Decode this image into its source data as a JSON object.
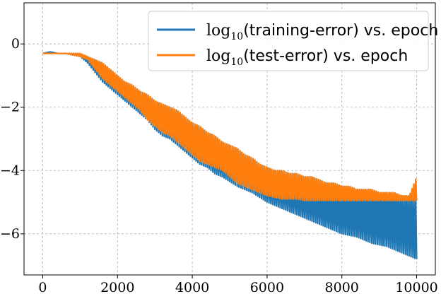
{
  "chart_data": {
    "type": "line",
    "title": "",
    "xlabel": "",
    "ylabel": "",
    "xlim": [
      -500,
      10500
    ],
    "ylim": [
      -7.3,
      1.3
    ],
    "grid": true,
    "legend_placement": "top-right",
    "x_ticks": [
      {
        "value": 0,
        "label": "0"
      },
      {
        "value": 2000,
        "label": "2000"
      },
      {
        "value": 4000,
        "label": "4000"
      },
      {
        "value": 6000,
        "label": "6000"
      },
      {
        "value": 8000,
        "label": "8000"
      },
      {
        "value": 10000,
        "label": "10000"
      }
    ],
    "y_ticks": [
      {
        "value": 0,
        "label": "0"
      },
      {
        "value": -2,
        "label": "−2"
      },
      {
        "value": -4,
        "label": "−4"
      },
      {
        "value": -6,
        "label": "−6"
      }
    ],
    "series": [
      {
        "name": "log10(training-error) vs. epoch",
        "legend_math": "log",
        "legend_sub": "10",
        "legend_rest": "(training-error) vs. epoch",
        "color": "#1f77b4",
        "x": [
          0,
          200,
          400,
          600,
          800,
          1000,
          1200,
          1400,
          1600,
          1800,
          2000,
          2200,
          2400,
          2600,
          2800,
          3000,
          3200,
          3400,
          3600,
          3800,
          4000,
          4200,
          4400,
          4600,
          4800,
          5000,
          5200,
          5400,
          5600,
          5800,
          6000,
          6200,
          6400,
          6600,
          6800,
          7000,
          7200,
          7400,
          7600,
          7800,
          8000,
          8200,
          8400,
          8600,
          8800,
          9000,
          9200,
          9400,
          9600,
          9800,
          10000
        ],
        "y": [
          -0.3,
          -0.25,
          -0.3,
          -0.3,
          -0.35,
          -0.4,
          -0.6,
          -0.9,
          -1.2,
          -1.4,
          -1.6,
          -1.8,
          -2.0,
          -2.2,
          -2.4,
          -2.7,
          -2.9,
          -3.0,
          -3.2,
          -3.4,
          -3.6,
          -3.8,
          -3.9,
          -4.1,
          -4.2,
          -4.35,
          -4.5,
          -4.6,
          -4.7,
          -4.85,
          -5.0,
          -5.1,
          -5.2,
          -5.3,
          -5.4,
          -5.5,
          -5.6,
          -5.7,
          -5.8,
          -5.9,
          -6.0,
          -6.05,
          -6.1,
          -6.2,
          -6.3,
          -6.35,
          -6.4,
          -6.5,
          -6.6,
          -6.7,
          -6.8
        ],
        "spikes_to": [
          -0.3,
          -0.25,
          -0.3,
          -0.3,
          -0.3,
          -0.3,
          -0.4,
          -0.5,
          -0.6,
          -0.8,
          -1.0,
          -1.2,
          -1.3,
          -1.5,
          -1.6,
          -1.8,
          -1.9,
          -2.0,
          -2.1,
          -2.3,
          -2.5,
          -2.6,
          -2.8,
          -2.9,
          -3.1,
          -3.2,
          -3.3,
          -3.5,
          -3.6,
          -3.8,
          -3.9,
          -4.0,
          -4.0,
          -4.1,
          -4.1,
          -4.2,
          -4.2,
          -4.3,
          -4.4,
          -4.4,
          -4.5,
          -4.5,
          -4.6,
          -4.6,
          -4.6,
          -4.7,
          -4.7,
          -4.7,
          -4.8,
          -4.8,
          -4.9
        ]
      },
      {
        "name": "log10(test-error) vs. epoch",
        "legend_math": "log",
        "legend_sub": "10",
        "legend_rest": "(test-error) vs. epoch",
        "color": "#ff7f0e",
        "x": [
          0,
          200,
          400,
          600,
          800,
          1000,
          1200,
          1400,
          1600,
          1800,
          2000,
          2200,
          2400,
          2600,
          2800,
          3000,
          3200,
          3400,
          3600,
          3800,
          4000,
          4200,
          4400,
          4600,
          4800,
          5000,
          5200,
          5400,
          5600,
          5800,
          6000,
          6200,
          6400,
          6600,
          6800,
          7000,
          7200,
          7400,
          7600,
          7800,
          8000,
          8200,
          8400,
          8600,
          8800,
          9000,
          9200,
          9400,
          9600,
          9800,
          10000
        ],
        "y": [
          -0.3,
          -0.3,
          -0.3,
          -0.3,
          -0.35,
          -0.4,
          -0.5,
          -0.8,
          -1.1,
          -1.3,
          -1.5,
          -1.7,
          -1.9,
          -2.1,
          -2.4,
          -2.6,
          -2.8,
          -2.9,
          -3.1,
          -3.3,
          -3.5,
          -3.7,
          -3.8,
          -3.9,
          -4.0,
          -4.2,
          -4.4,
          -4.5,
          -4.6,
          -4.7,
          -4.8,
          -4.85,
          -4.9,
          -4.9,
          -4.9,
          -4.95,
          -4.95,
          -4.95,
          -4.95,
          -4.95,
          -4.95,
          -4.95,
          -4.95,
          -4.95,
          -4.95,
          -4.95,
          -4.95,
          -4.95,
          -4.95,
          -4.95,
          -4.95
        ],
        "spikes_to": [
          -0.3,
          -0.3,
          -0.3,
          -0.3,
          -0.3,
          -0.3,
          -0.4,
          -0.5,
          -0.6,
          -0.8,
          -1.0,
          -1.2,
          -1.3,
          -1.5,
          -1.6,
          -1.8,
          -1.9,
          -2.0,
          -2.1,
          -2.3,
          -2.5,
          -2.6,
          -2.8,
          -2.9,
          -3.1,
          -3.2,
          -3.3,
          -3.5,
          -3.6,
          -3.8,
          -3.9,
          -4.0,
          -4.0,
          -4.1,
          -4.1,
          -4.2,
          -4.2,
          -4.3,
          -4.4,
          -4.4,
          -4.5,
          -4.5,
          -4.6,
          -4.6,
          -4.6,
          -4.7,
          -4.7,
          -4.7,
          -4.8,
          -4.8,
          -4.2
        ]
      }
    ]
  }
}
